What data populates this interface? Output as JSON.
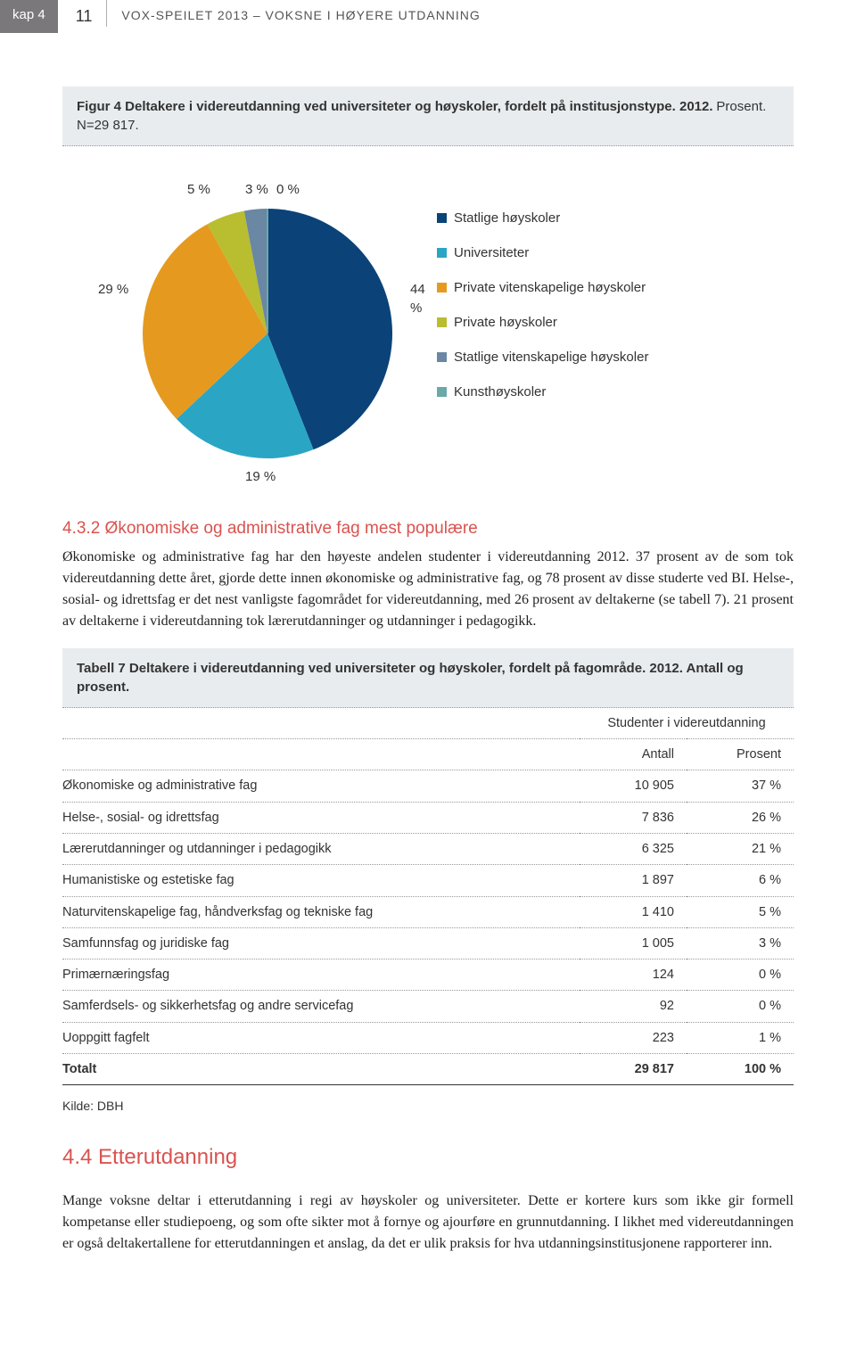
{
  "header": {
    "kap_label": "kap 4",
    "page_number": "11",
    "running_title": "VOX-SPEILET 2013 – VOKSNE I HØYERE UTDANNING"
  },
  "figure4": {
    "caption_strong": "Figur 4 Deltakere i videreutdanning ved universiteter og høyskoler, fordelt på institusjonstype. 2012.",
    "caption_rest": "Prosent. N=29 817.",
    "type": "pie",
    "background_color": "#ffffff",
    "slice_label_fontsize": 15,
    "legend_fontsize": 15,
    "categories": [
      {
        "label": "Statlige høyskoler",
        "value": 44,
        "display": "44 %",
        "color": "#0b4378"
      },
      {
        "label": "Universiteter",
        "value": 19,
        "display": "19 %",
        "color": "#2aa6c4"
      },
      {
        "label": "Private vitenskapelige høyskoler",
        "value": 29,
        "display": "29 %",
        "color": "#e59a1f"
      },
      {
        "label": "Private høyskoler",
        "value": 5,
        "display": "5 %",
        "color": "#b9bd30"
      },
      {
        "label": "Statlige vitenskapelige høyskoler",
        "value": 3,
        "display": "3 %",
        "color": "#6a87a3"
      },
      {
        "label": "Kunsthøyskoler",
        "value": 0,
        "display": "0 %",
        "color": "#6ba8a8"
      }
    ]
  },
  "section432": {
    "heading": "4.3.2 Økonomiske og administrative fag mest populære",
    "body": "Økonomiske og administrative fag har den høyeste andelen studenter i videreutdanning 2012. 37 prosent av de som tok videreutdanning dette året, gjorde dette innen økonomiske og administrative fag, og 78 prosent av disse studerte ved BI. Helse-, sosial- og idrettsfag er det nest vanligste fagområdet for videreutdanning, med 26 prosent av deltakerne (se tabell 7). 21 prosent av deltakerne i videreutdanning tok lærerutdanninger og utdanninger i pedagogikk."
  },
  "table7": {
    "caption": "Tabell 7 Deltakere i videreutdanning ved universiteter og høyskoler, fordelt på fagområde. 2012. Antall og prosent.",
    "span_header": "Studenter i videreutdanning",
    "col_label": "",
    "col_antall": "Antall",
    "col_prosent": "Prosent",
    "rows": [
      {
        "label": "Økonomiske og administrative fag",
        "antall": "10 905",
        "prosent": "37 %"
      },
      {
        "label": "Helse-, sosial- og idrettsfag",
        "antall": "7 836",
        "prosent": "26 %"
      },
      {
        "label": "Lærerutdanninger og utdanninger i pedagogikk",
        "antall": "6 325",
        "prosent": "21 %"
      },
      {
        "label": "Humanistiske og estetiske fag",
        "antall": "1 897",
        "prosent": "6 %"
      },
      {
        "label": "Naturvitenskapelige fag, håndverksfag og tekniske fag",
        "antall": "1 410",
        "prosent": "5 %"
      },
      {
        "label": "Samfunnsfag og juridiske fag",
        "antall": "1 005",
        "prosent": "3 %"
      },
      {
        "label": "Primærnæringsfag",
        "antall": "124",
        "prosent": "0 %"
      },
      {
        "label": "Samferdsels- og sikkerhetsfag og andre servicefag",
        "antall": "92",
        "prosent": "0 %"
      },
      {
        "label": "Uoppgitt fagfelt",
        "antall": "223",
        "prosent": "1 %"
      }
    ],
    "total": {
      "label": "Totalt",
      "antall": "29 817",
      "prosent": "100 %"
    },
    "kilde": "Kilde: DBH"
  },
  "section44": {
    "heading": "4.4 Etterutdanning",
    "body": "Mange voksne deltar i etterutdanning i regi av høyskoler og universiteter. Dette er kortere kurs som ikke gir formell kompetanse eller studiepoeng, og som ofte sikter mot å fornye og ajourføre en grunnutdanning. I likhet med videreutdanningen er også deltakertallene for etterutdanningen et anslag, da det er ulik praksis for hva utdanningsinstitusjonene rapporterer inn."
  },
  "colors": {
    "heading_red": "#d9534f",
    "caption_bg": "#e8ecef",
    "text": "#333333",
    "body_text": "#222222",
    "dotted_border": "#999999",
    "kap_bg": "#7a787a"
  }
}
